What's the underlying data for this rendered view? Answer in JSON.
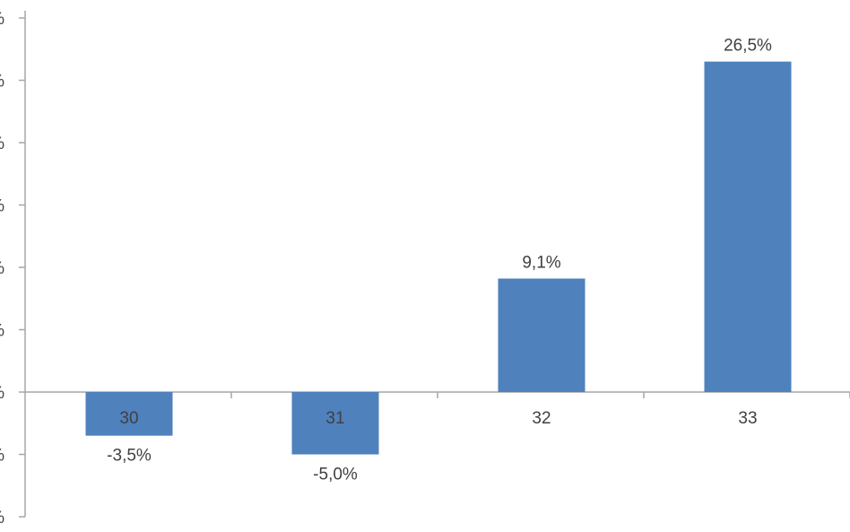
{
  "chart_data": {
    "type": "bar",
    "categories": [
      "30",
      "31",
      "32",
      "33"
    ],
    "values": [
      -3.5,
      -5.0,
      9.1,
      26.5
    ],
    "data_labels": [
      "-3,5%",
      "-5,0%",
      "9,1%",
      "26,5%"
    ],
    "ylim": [
      -10,
      30
    ],
    "y_ticks": [
      -10,
      -5,
      0,
      5,
      10,
      15,
      20,
      25,
      30
    ],
    "y_tick_labels": [
      "%",
      "%",
      "%",
      "%",
      "%",
      "%",
      "%",
      "%",
      "%"
    ],
    "bar_color": "#4F81BD",
    "axis_color": "#A6A6A6",
    "grid": false,
    "legend": "none"
  }
}
